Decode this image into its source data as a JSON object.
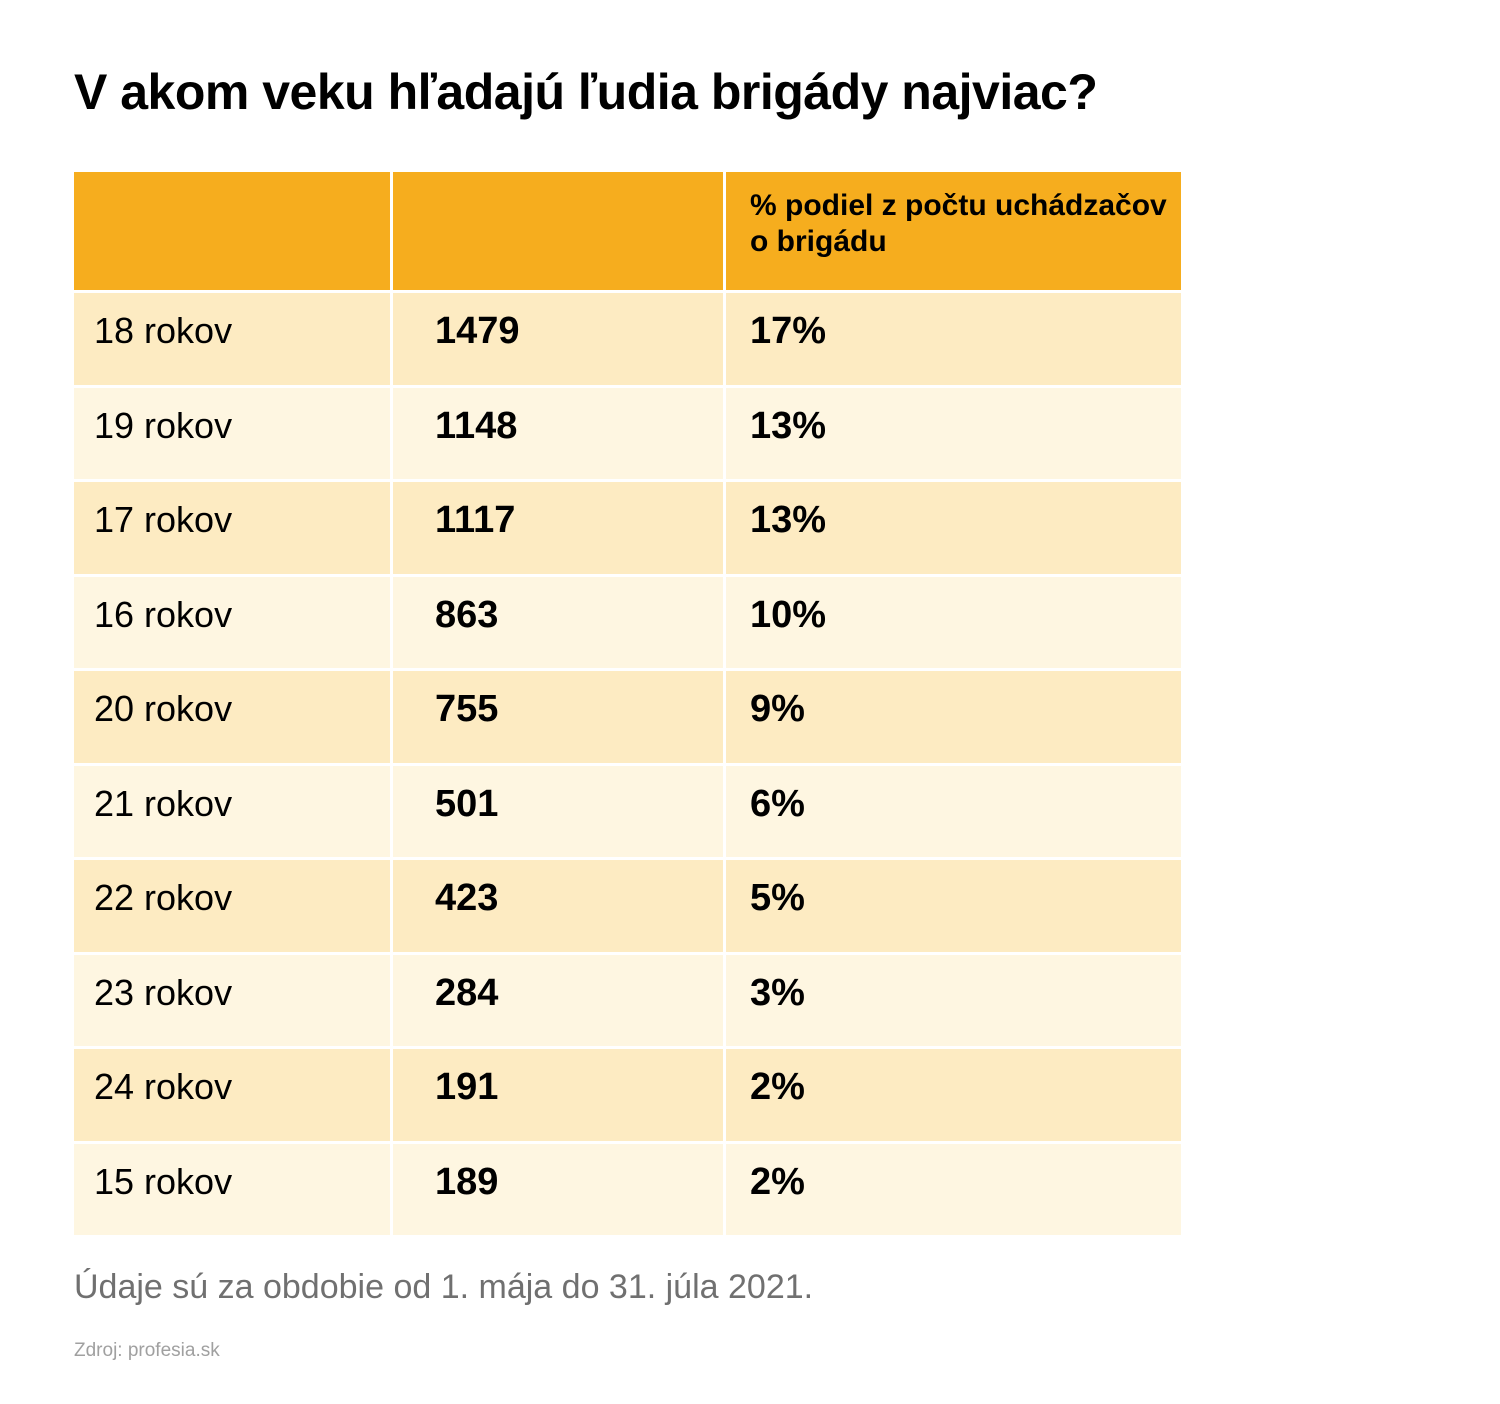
{
  "title": "V akom veku hľadajú ľudia brigády najviac?",
  "table": {
    "headers": [
      "",
      "",
      "% podiel z počtu uchádzačov o brigádu"
    ],
    "rows": [
      {
        "age": "18 rokov",
        "count": "1479",
        "share": "17%"
      },
      {
        "age": "19 rokov",
        "count": "1148",
        "share": "13%"
      },
      {
        "age": "17 rokov",
        "count": "1117",
        "share": "13%"
      },
      {
        "age": "16 rokov",
        "count": "863",
        "share": "10%"
      },
      {
        "age": "20 rokov",
        "count": "755",
        "share": "9%"
      },
      {
        "age": "21 rokov",
        "count": "501",
        "share": "6%"
      },
      {
        "age": "22 rokov",
        "count": "423",
        "share": "5%"
      },
      {
        "age": "23 rokov",
        "count": "284",
        "share": "3%"
      },
      {
        "age": "24 rokov",
        "count": "191",
        "share": "2%"
      },
      {
        "age": "15 rokov",
        "count": "189",
        "share": "2%"
      }
    ]
  },
  "note": "Údaje sú za obdobie od 1. mája do 31. júla 2021.",
  "source": "Zdroj: profesia.sk",
  "colors": {
    "header": "#f6ad1e",
    "row_odd": "#fdebc2",
    "row_even": "#fef6e1"
  },
  "chart_data": {
    "type": "table",
    "title": "V akom veku hľadajú ľudia brigády najviac?",
    "columns": [
      "",
      "",
      "% podiel z počtu uchádzačov o brigádu"
    ],
    "categories": [
      "18 rokov",
      "19 rokov",
      "17 rokov",
      "16 rokov",
      "20 rokov",
      "21 rokov",
      "22 rokov",
      "23 rokov",
      "24 rokov",
      "15 rokov"
    ],
    "series": [
      {
        "values": [
          1479,
          1148,
          1117,
          863,
          755,
          501,
          423,
          284,
          191,
          189
        ]
      },
      {
        "name": "% podiel z počtu uchádzačov o brigádu",
        "values": [
          17,
          13,
          13,
          10,
          9,
          6,
          5,
          3,
          2,
          2
        ]
      }
    ]
  }
}
